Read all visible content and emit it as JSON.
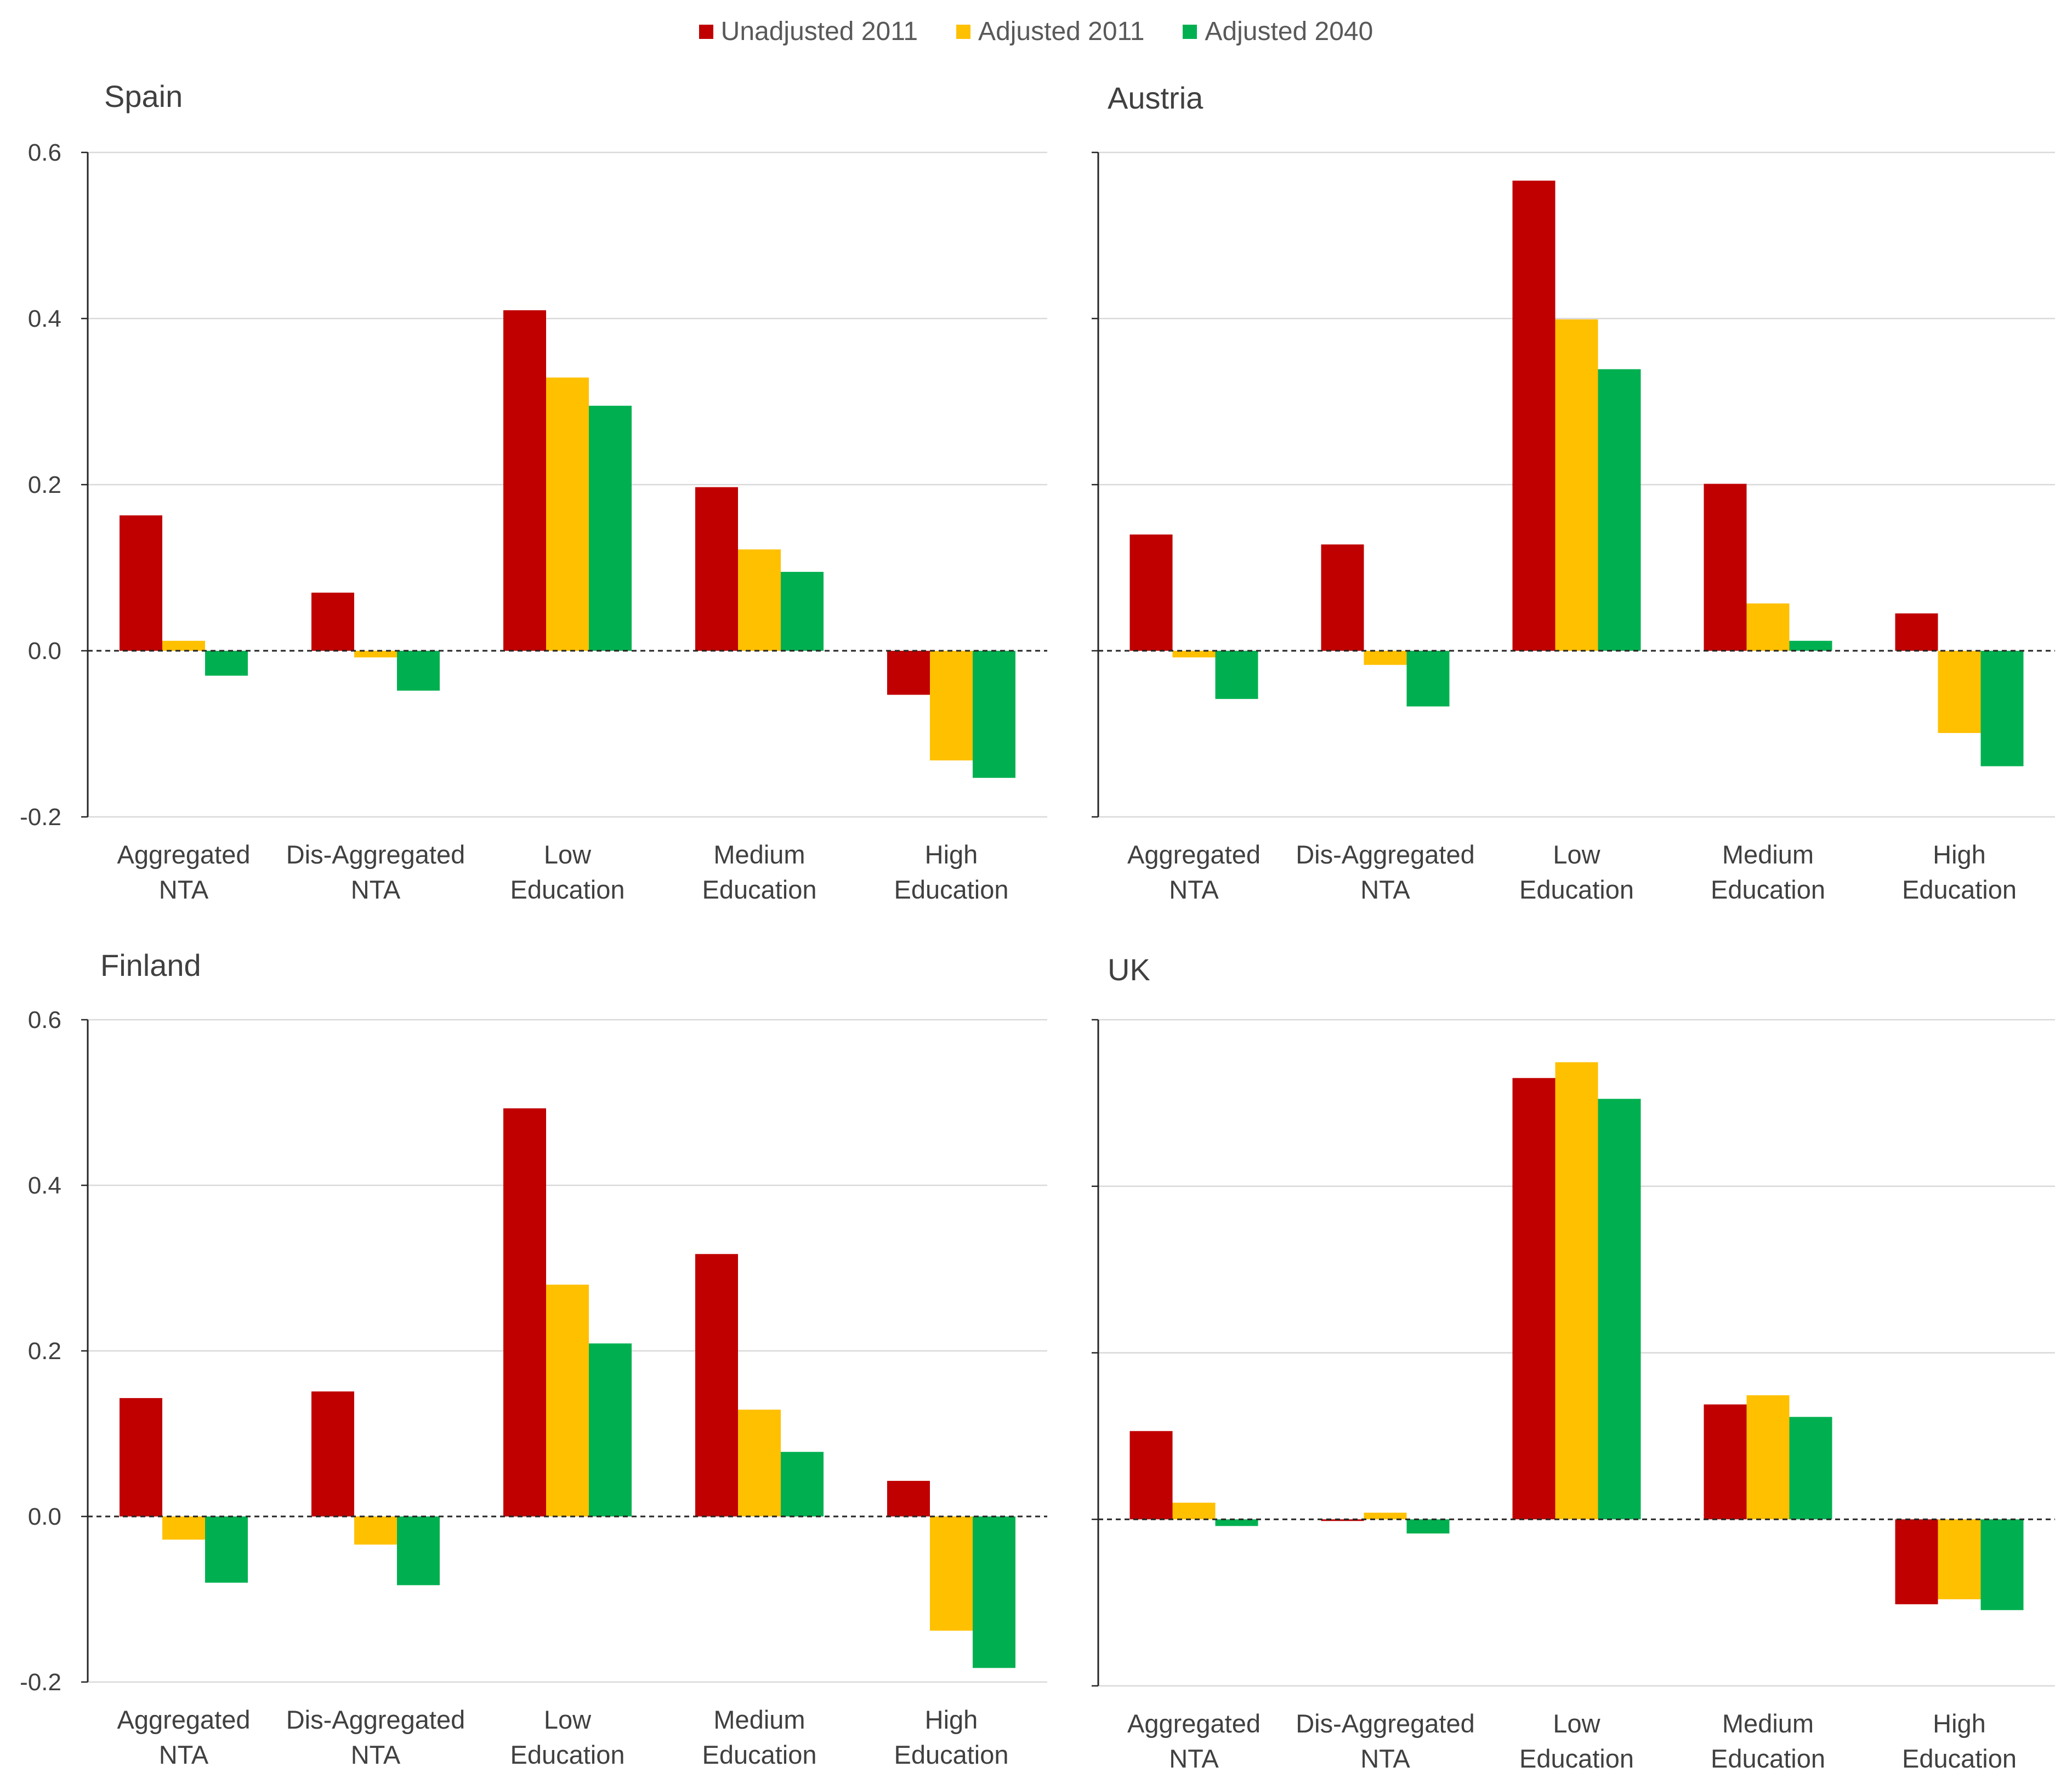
{
  "legend": [
    {
      "label": "Unadjusted 2011",
      "color": "#C00000"
    },
    {
      "label": "Adjusted 2011",
      "color": "#FFC000"
    },
    {
      "label": "Adjusted 2040",
      "color": "#00B050"
    }
  ],
  "chart_data": [
    {
      "type": "bar",
      "title": "Spain",
      "categories": [
        [
          "Aggregated",
          "NTA"
        ],
        [
          "Dis-Aggregated",
          "NTA"
        ],
        [
          "Low",
          "Education"
        ],
        [
          "Medium",
          "Education"
        ],
        [
          "High",
          "Education"
        ]
      ],
      "series": [
        {
          "name": "Unadjusted 2011",
          "values": [
            0.163,
            0.07,
            0.41,
            0.197,
            -0.053
          ]
        },
        {
          "name": "Adjusted 2011",
          "values": [
            0.012,
            -0.008,
            0.329,
            0.122,
            -0.132
          ]
        },
        {
          "name": "Adjusted 2040",
          "values": [
            -0.03,
            -0.048,
            0.295,
            0.095,
            -0.153
          ]
        }
      ],
      "ylim": [
        -0.2,
        0.6
      ],
      "yticks": [
        "-0.2",
        "0.0",
        "0.2",
        "0.4",
        "0.6"
      ],
      "grid": true,
      "show_tick_labels": true
    },
    {
      "type": "bar",
      "title": "Austria",
      "categories": [
        [
          "Aggregated",
          "NTA"
        ],
        [
          "Dis-Aggregated",
          "NTA"
        ],
        [
          "Low",
          "Education"
        ],
        [
          "Medium",
          "Education"
        ],
        [
          "High",
          "Education"
        ]
      ],
      "series": [
        {
          "name": "Unadjusted 2011",
          "values": [
            0.14,
            0.128,
            0.566,
            0.201,
            0.045
          ]
        },
        {
          "name": "Adjusted 2011",
          "values": [
            -0.008,
            -0.017,
            0.399,
            0.057,
            -0.099
          ]
        },
        {
          "name": "Adjusted 2040",
          "values": [
            -0.058,
            -0.067,
            0.339,
            0.012,
            -0.139
          ]
        }
      ],
      "ylim": [
        -0.2,
        0.6
      ],
      "grid": true,
      "show_tick_labels": false
    },
    {
      "type": "bar",
      "title": "Finland",
      "categories": [
        [
          "Aggregated",
          "NTA"
        ],
        [
          "Dis-Aggregated",
          "NTA"
        ],
        [
          "Low",
          "Education"
        ],
        [
          "Medium",
          "Education"
        ],
        [
          "High",
          "Education"
        ]
      ],
      "series": [
        {
          "name": "Unadjusted 2011",
          "values": [
            0.143,
            0.151,
            0.493,
            0.317,
            0.043
          ]
        },
        {
          "name": "Adjusted 2011",
          "values": [
            -0.028,
            -0.034,
            0.28,
            0.129,
            -0.138
          ]
        },
        {
          "name": "Adjusted 2040",
          "values": [
            -0.08,
            -0.083,
            0.209,
            0.078,
            -0.183
          ]
        }
      ],
      "ylim": [
        -0.2,
        0.6
      ],
      "yticks": [
        "-0.2",
        "0.0",
        "0.2",
        "0.4",
        "0.6"
      ],
      "grid": true,
      "show_tick_labels": true
    },
    {
      "type": "bar",
      "title": "UK",
      "categories": [
        [
          "Aggregated",
          "NTA"
        ],
        [
          "Dis-Aggregated",
          "NTA"
        ],
        [
          "Low",
          "Education"
        ],
        [
          "Medium",
          "Education"
        ],
        [
          "High",
          "Education"
        ]
      ],
      "series": [
        {
          "name": "Unadjusted 2011",
          "values": [
            0.106,
            -0.002,
            0.53,
            0.138,
            -0.102
          ]
        },
        {
          "name": "Adjusted 2011",
          "values": [
            0.02,
            0.008,
            0.549,
            0.149,
            -0.096
          ]
        },
        {
          "name": "Adjusted 2040",
          "values": [
            -0.008,
            -0.017,
            0.505,
            0.123,
            -0.109
          ]
        }
      ],
      "ylim": [
        -0.2,
        0.6
      ],
      "grid": true,
      "show_tick_labels": false
    }
  ]
}
